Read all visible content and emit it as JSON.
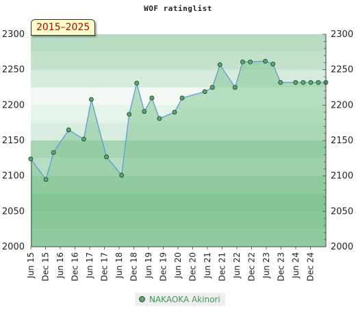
{
  "chart_data": {
    "type": "area",
    "title": "WOF ratinglist",
    "badge": "2015–2025",
    "ylim": [
      2000,
      2300
    ],
    "yticks": [
      2000,
      2050,
      2100,
      2150,
      2200,
      2250,
      2300
    ],
    "x_tick_labels": [
      "Jun 15",
      "Dec 15",
      "Jun 16",
      "Dec 16",
      "Jun 17",
      "Dec 17",
      "Jun 18",
      "Dec 18",
      "Jun 19",
      "Dec 19",
      "Jun 20",
      "Dec 20",
      "Jun 21",
      "Dec 21",
      "Jun 22",
      "Dec 22",
      "Jun 23",
      "Dec 23",
      "Jun 24",
      "Dec 24"
    ],
    "series": [
      {
        "name": "NAKAOKA Akinori",
        "x": [
          "2015-06",
          "2015-12",
          "2016-03",
          "2016-09",
          "2017-03",
          "2017-06",
          "2017-12",
          "2018-06",
          "2018-09",
          "2018-12",
          "2019-03",
          "2019-06",
          "2019-09",
          "2020-03",
          "2020-06",
          "2021-03",
          "2021-06",
          "2021-09",
          "2022-03",
          "2022-06",
          "2022-09",
          "2023-03",
          "2023-06",
          "2023-09",
          "2024-03",
          "2024-06",
          "2024-09",
          "2024-12",
          "2025-03"
        ],
        "values": [
          2124,
          2095,
          2133,
          2165,
          2152,
          2208,
          2127,
          2101,
          2187,
          2231,
          2191,
          2210,
          2181,
          2190,
          2210,
          2219,
          2225,
          2257,
          2225,
          2261,
          2261,
          2262,
          2258,
          2232,
          2232,
          2232,
          2232,
          2232,
          2232
        ]
      }
    ],
    "colors": {
      "line": "#5b9bd5",
      "area": "#85c695",
      "marker": "#5fa56f",
      "legend_text": "#3f9a58"
    }
  }
}
